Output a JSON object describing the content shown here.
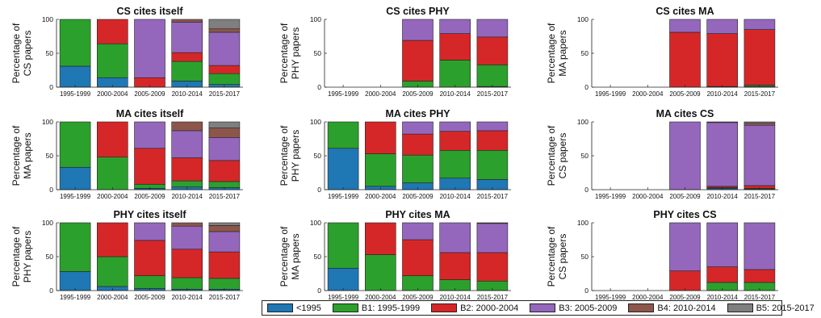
{
  "legend_entries": [
    {
      "label": "<1995",
      "color": "#1f77b4"
    },
    {
      "label": "B1: 1995-1999",
      "color": "#2ca02c"
    },
    {
      "label": "B2: 2000-2004",
      "color": "#d62728"
    },
    {
      "label": "B3: 2005-2009",
      "color": "#9467bd"
    },
    {
      "label": "B4: 2010-2014",
      "color": "#8c564b"
    },
    {
      "label": "B5: 2015-2017",
      "color": "#7f7f7f"
    }
  ],
  "chart_data": [
    {
      "type": "bar",
      "stacked": true,
      "title": "CS cites itself",
      "ylabel": [
        "Percentage of",
        "CS papers"
      ],
      "ylim": [
        0,
        100
      ],
      "yticks": [
        0,
        50,
        100
      ],
      "categories": [
        "1995-1999",
        "2000-2004",
        "2005-2009",
        "2010-2014",
        "2015-2017"
      ],
      "series": [
        {
          "name": "<1995",
          "values": [
            31,
            14,
            0,
            9,
            4
          ]
        },
        {
          "name": "B1: 1995-1999",
          "values": [
            69,
            50,
            0,
            29,
            16
          ]
        },
        {
          "name": "B2: 2000-2004",
          "values": [
            0,
            36,
            14,
            13,
            12
          ]
        },
        {
          "name": "B3: 2005-2009",
          "values": [
            0,
            0,
            86,
            45,
            49
          ]
        },
        {
          "name": "B4: 2010-2014",
          "values": [
            0,
            0,
            0,
            4,
            5
          ]
        },
        {
          "name": "B5: 2015-2017",
          "values": [
            0,
            0,
            0,
            0,
            14
          ]
        }
      ]
    },
    {
      "type": "bar",
      "stacked": true,
      "title": "CS cites PHY",
      "ylabel": [
        "Percentage of",
        "PHY papers"
      ],
      "ylim": [
        0,
        100
      ],
      "yticks": [
        0,
        50,
        100
      ],
      "categories": [
        "1995-1999",
        "2000-2004",
        "2005-2009",
        "2010-2014",
        "2015-2017"
      ],
      "series": [
        {
          "name": "<1995",
          "values": [
            0,
            0,
            0,
            0,
            1
          ]
        },
        {
          "name": "B1: 1995-1999",
          "values": [
            0,
            0,
            9,
            40,
            32
          ]
        },
        {
          "name": "B2: 2000-2004",
          "values": [
            0,
            0,
            60,
            39,
            41
          ]
        },
        {
          "name": "B3: 2005-2009",
          "values": [
            0,
            0,
            31,
            21,
            26
          ]
        },
        {
          "name": "B4: 2010-2014",
          "values": [
            0,
            0,
            0,
            0,
            0
          ]
        },
        {
          "name": "B5: 2015-2017",
          "values": [
            0,
            0,
            0,
            0,
            0
          ]
        }
      ]
    },
    {
      "type": "bar",
      "stacked": true,
      "title": "CS cites MA",
      "ylabel": [
        "Percentage of",
        "MA papers"
      ],
      "ylim": [
        0,
        100
      ],
      "yticks": [
        0,
        50,
        100
      ],
      "categories": [
        "1995-1999",
        "2000-2004",
        "2005-2009",
        "2010-2014",
        "2015-2017"
      ],
      "series": [
        {
          "name": "<1995",
          "values": [
            0,
            0,
            0,
            0,
            1
          ]
        },
        {
          "name": "B1: 1995-1999",
          "values": [
            0,
            0,
            0,
            1,
            2
          ]
        },
        {
          "name": "B2: 2000-2004",
          "values": [
            0,
            0,
            81,
            78,
            82
          ]
        },
        {
          "name": "B3: 2005-2009",
          "values": [
            0,
            0,
            19,
            21,
            15
          ]
        },
        {
          "name": "B4: 2010-2014",
          "values": [
            0,
            0,
            0,
            0,
            0
          ]
        },
        {
          "name": "B5: 2015-2017",
          "values": [
            0,
            0,
            0,
            0,
            0
          ]
        }
      ]
    },
    {
      "type": "bar",
      "stacked": true,
      "title": "MA cites itself",
      "ylabel": [
        "Percentage of",
        "MA papers"
      ],
      "ylim": [
        0,
        100
      ],
      "yticks": [
        0,
        50,
        100
      ],
      "categories": [
        "1995-1999",
        "2000-2004",
        "2005-2009",
        "2010-2014",
        "2015-2017"
      ],
      "series": [
        {
          "name": "<1995",
          "values": [
            33,
            0,
            2,
            4,
            3
          ]
        },
        {
          "name": "B1: 1995-1999",
          "values": [
            67,
            48,
            6,
            9,
            9
          ]
        },
        {
          "name": "B2: 2000-2004",
          "values": [
            0,
            52,
            53,
            34,
            31
          ]
        },
        {
          "name": "B3: 2005-2009",
          "values": [
            0,
            0,
            39,
            40,
            34
          ]
        },
        {
          "name": "B4: 2010-2014",
          "values": [
            0,
            0,
            0,
            13,
            14
          ]
        },
        {
          "name": "B5: 2015-2017",
          "values": [
            0,
            0,
            0,
            0,
            9
          ]
        }
      ]
    },
    {
      "type": "bar",
      "stacked": true,
      "title": "MA cites PHY",
      "ylabel": [
        "Percentage of",
        "PHY papers"
      ],
      "ylim": [
        0,
        100
      ],
      "yticks": [
        0,
        50,
        100
      ],
      "categories": [
        "1995-1999",
        "2000-2004",
        "2005-2009",
        "2010-2014",
        "2015-2017"
      ],
      "series": [
        {
          "name": "<1995",
          "values": [
            61,
            5,
            10,
            17,
            15
          ]
        },
        {
          "name": "B1: 1995-1999",
          "values": [
            39,
            48,
            41,
            41,
            43
          ]
        },
        {
          "name": "B2: 2000-2004",
          "values": [
            0,
            47,
            31,
            28,
            29
          ]
        },
        {
          "name": "B3: 2005-2009",
          "values": [
            0,
            0,
            18,
            14,
            13
          ]
        },
        {
          "name": "B4: 2010-2014",
          "values": [
            0,
            0,
            0,
            0,
            0
          ]
        },
        {
          "name": "B5: 2015-2017",
          "values": [
            0,
            0,
            0,
            0,
            0
          ]
        }
      ]
    },
    {
      "type": "bar",
      "stacked": true,
      "title": "MA cites CS",
      "ylabel": [
        "Percentage of",
        "CS papers"
      ],
      "ylim": [
        0,
        100
      ],
      "yticks": [
        0,
        50,
        100
      ],
      "categories": [
        "1995-1999",
        "2000-2004",
        "2005-2009",
        "2010-2014",
        "2015-2017"
      ],
      "series": [
        {
          "name": "<1995",
          "values": [
            0,
            0,
            0,
            2,
            1
          ]
        },
        {
          "name": "B1: 1995-1999",
          "values": [
            0,
            0,
            0,
            1,
            1
          ]
        },
        {
          "name": "B2: 2000-2004",
          "values": [
            0,
            0,
            0,
            2,
            4
          ]
        },
        {
          "name": "B3: 2005-2009",
          "values": [
            0,
            0,
            100,
            94,
            89
          ]
        },
        {
          "name": "B4: 2010-2014",
          "values": [
            0,
            0,
            0,
            1,
            3
          ]
        },
        {
          "name": "B5: 2015-2017",
          "values": [
            0,
            0,
            0,
            0,
            2
          ]
        }
      ]
    },
    {
      "type": "bar",
      "stacked": true,
      "title": "PHY cites itself",
      "ylabel": [
        "Percentage of",
        "PHY papers"
      ],
      "ylim": [
        0,
        100
      ],
      "yticks": [
        0,
        50,
        100
      ],
      "categories": [
        "1995-1999",
        "2000-2004",
        "2005-2009",
        "2010-2014",
        "2015-2017"
      ],
      "series": [
        {
          "name": "<1995",
          "values": [
            28,
            6,
            3,
            2,
            2
          ]
        },
        {
          "name": "B1: 1995-1999",
          "values": [
            72,
            44,
            19,
            17,
            16
          ]
        },
        {
          "name": "B2: 2000-2004",
          "values": [
            0,
            50,
            52,
            42,
            39
          ]
        },
        {
          "name": "B3: 2005-2009",
          "values": [
            0,
            0,
            26,
            34,
            30
          ]
        },
        {
          "name": "B4: 2010-2014",
          "values": [
            0,
            0,
            0,
            5,
            9
          ]
        },
        {
          "name": "B5: 2015-2017",
          "values": [
            0,
            0,
            0,
            0,
            4
          ]
        }
      ]
    },
    {
      "type": "bar",
      "stacked": true,
      "title": "PHY cites MA",
      "ylabel": [
        "Percentage of",
        "MA papers"
      ],
      "ylim": [
        0,
        100
      ],
      "yticks": [
        0,
        50,
        100
      ],
      "categories": [
        "1995-1999",
        "2000-2004",
        "2005-2009",
        "2010-2014",
        "2015-2017"
      ],
      "series": [
        {
          "name": "<1995",
          "values": [
            33,
            0,
            0,
            0,
            0
          ]
        },
        {
          "name": "B1: 1995-1999",
          "values": [
            67,
            53,
            22,
            16,
            14
          ]
        },
        {
          "name": "B2: 2000-2004",
          "values": [
            0,
            47,
            53,
            40,
            42
          ]
        },
        {
          "name": "B3: 2005-2009",
          "values": [
            0,
            0,
            25,
            44,
            43
          ]
        },
        {
          "name": "B4: 2010-2014",
          "values": [
            0,
            0,
            0,
            0,
            1
          ]
        },
        {
          "name": "B5: 2015-2017",
          "values": [
            0,
            0,
            0,
            0,
            0
          ]
        }
      ]
    },
    {
      "type": "bar",
      "stacked": true,
      "title": "PHY cites CS",
      "ylabel": [
        "Percentage of",
        "CS papers"
      ],
      "ylim": [
        0,
        100
      ],
      "yticks": [
        0,
        50,
        100
      ],
      "categories": [
        "1995-1999",
        "2000-2004",
        "2005-2009",
        "2010-2014",
        "2015-2017"
      ],
      "series": [
        {
          "name": "<1995",
          "values": [
            0,
            0,
            0,
            0,
            0
          ]
        },
        {
          "name": "B1: 1995-1999",
          "values": [
            0,
            0,
            0,
            12,
            12
          ]
        },
        {
          "name": "B2: 2000-2004",
          "values": [
            0,
            0,
            29,
            23,
            19
          ]
        },
        {
          "name": "B3: 2005-2009",
          "values": [
            0,
            0,
            71,
            65,
            69
          ]
        },
        {
          "name": "B4: 2010-2014",
          "values": [
            0,
            0,
            0,
            0,
            0
          ]
        },
        {
          "name": "B5: 2015-2017",
          "values": [
            0,
            0,
            0,
            0,
            0
          ]
        }
      ]
    }
  ]
}
